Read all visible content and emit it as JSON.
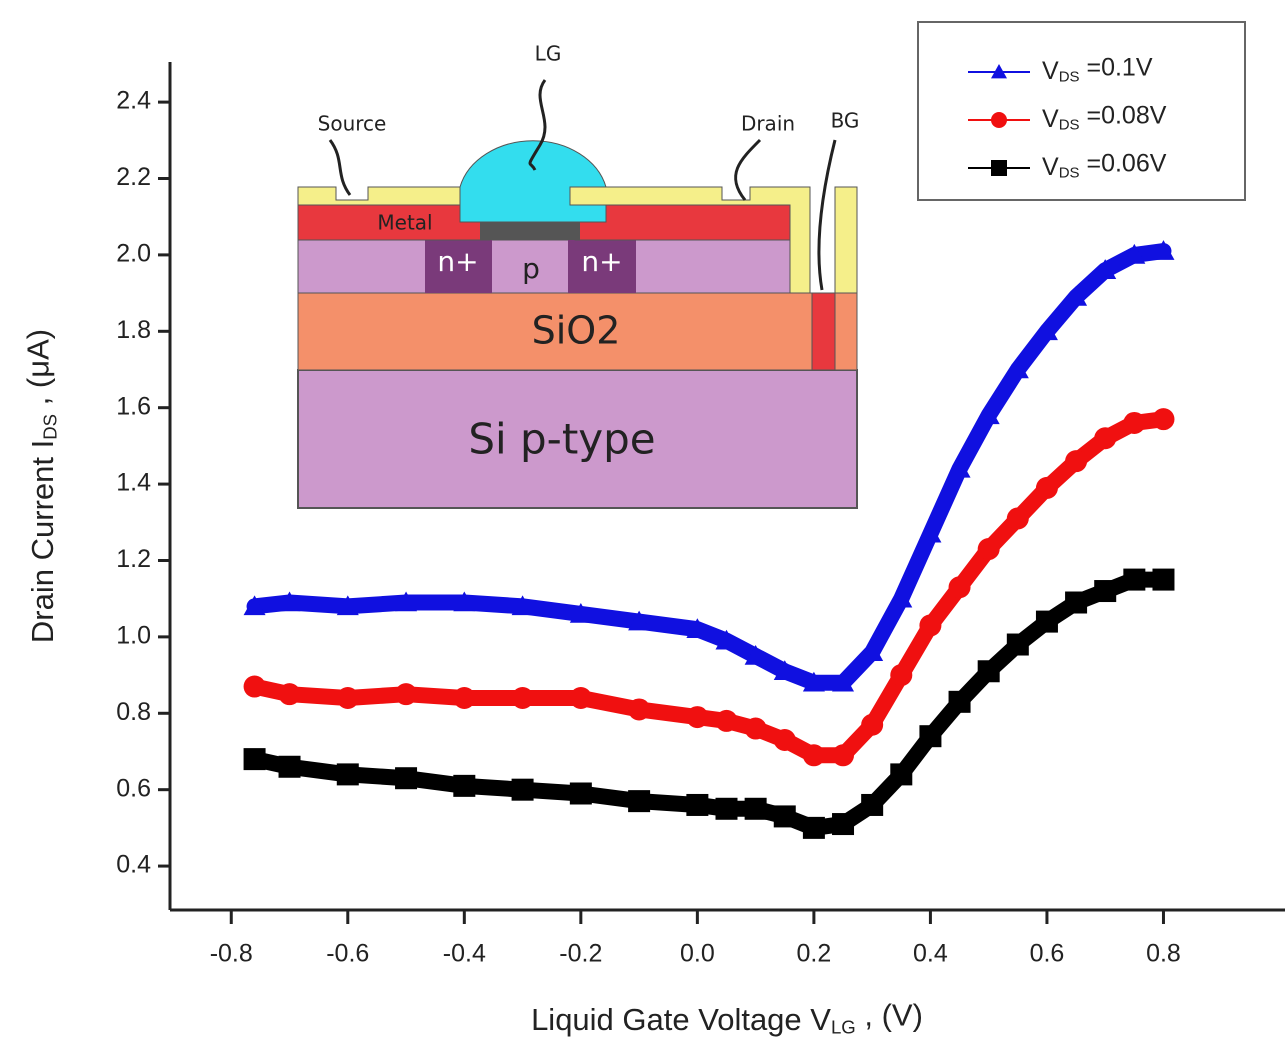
{
  "chart_data": {
    "type": "line",
    "xlabel": [
      "Liquid Gate Voltage V",
      "LG",
      " , (V)"
    ],
    "ylabel": [
      "Drain Current I",
      "DS",
      " , (μA)"
    ],
    "x": [
      -0.76,
      -0.7,
      -0.6,
      -0.5,
      -0.4,
      -0.3,
      -0.2,
      -0.1,
      0.0,
      0.05,
      0.1,
      0.15,
      0.2,
      0.25,
      0.3,
      0.35,
      0.4,
      0.45,
      0.5,
      0.55,
      0.6,
      0.65,
      0.7,
      0.75,
      0.8
    ],
    "series": [
      {
        "name": [
          "V",
          "DS",
          " =0.1V"
        ],
        "color": "#1010e0",
        "marker": "triangle",
        "values": [
          1.08,
          1.09,
          1.08,
          1.09,
          1.09,
          1.08,
          1.06,
          1.04,
          1.02,
          0.99,
          0.95,
          0.91,
          0.88,
          0.88,
          0.96,
          1.1,
          1.27,
          1.44,
          1.58,
          1.7,
          1.8,
          1.89,
          1.96,
          2.0,
          2.01
        ]
      },
      {
        "name": [
          "V",
          "DS",
          " =0.08V"
        ],
        "color": "#f01010",
        "marker": "circle",
        "values": [
          0.87,
          0.85,
          0.84,
          0.85,
          0.84,
          0.84,
          0.84,
          0.81,
          0.79,
          0.78,
          0.76,
          0.73,
          0.69,
          0.69,
          0.77,
          0.9,
          1.03,
          1.13,
          1.23,
          1.31,
          1.39,
          1.46,
          1.52,
          1.56,
          1.57
        ]
      },
      {
        "name": [
          "V",
          "DS",
          " =0.06V"
        ],
        "color": "#000000",
        "marker": "square",
        "values": [
          0.68,
          0.66,
          0.64,
          0.63,
          0.61,
          0.6,
          0.59,
          0.57,
          0.56,
          0.55,
          0.55,
          0.53,
          0.5,
          0.51,
          0.56,
          0.64,
          0.74,
          0.83,
          0.91,
          0.98,
          1.04,
          1.09,
          1.12,
          1.15,
          1.15
        ]
      }
    ],
    "xlim": [
      -0.9,
      1.0
    ],
    "ylim": [
      0.285,
      2.505
    ],
    "xticks": [
      -0.8,
      -0.6,
      -0.4,
      -0.2,
      {
        "value": 0,
        "label": "0.0"
      },
      0.2,
      0.4,
      0.6,
      0.8
    ],
    "yticks": [
      0.4,
      0.6,
      0.8,
      {
        "value": 1,
        "label": "1.0"
      },
      1.2,
      1.4,
      1.6,
      1.8,
      {
        "value": 2,
        "label": "2.0"
      },
      2.2,
      2.4
    ],
    "legend": "top-right",
    "inset": {
      "droplet": "LG",
      "source": "Source",
      "drain": "Drain",
      "back_gate": "BG",
      "metal": "Metal",
      "left_doping": "n+",
      "channel": "p",
      "right_doping": "n+",
      "oxide": "SiO2",
      "substrate": "Si p-type"
    }
  }
}
